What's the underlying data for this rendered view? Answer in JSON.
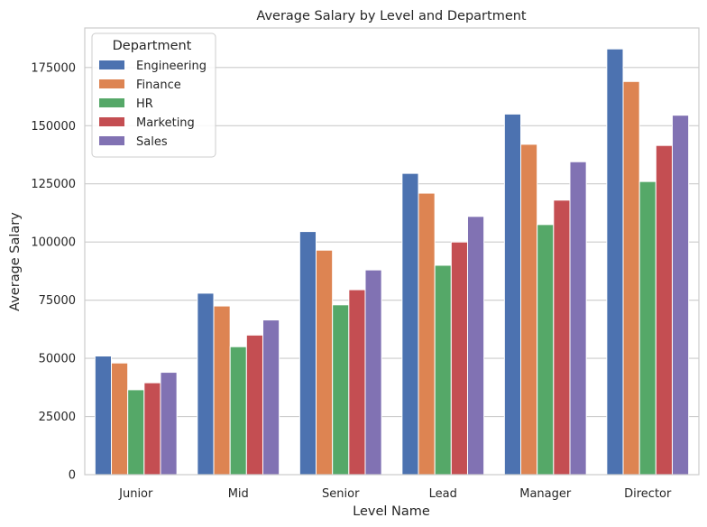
{
  "chart_data": {
    "type": "bar",
    "title": "Average Salary by Level and Department",
    "xlabel": "Level Name",
    "ylabel": "Average Salary",
    "categories": [
      "Junior",
      "Mid",
      "Senior",
      "Lead",
      "Manager",
      "Director"
    ],
    "ylim": [
      0,
      192000
    ],
    "yticks": [
      0,
      25000,
      50000,
      75000,
      100000,
      125000,
      150000,
      175000
    ],
    "ytick_labels": [
      "0",
      "25000",
      "50000",
      "75000",
      "100000",
      "125000",
      "150000",
      "175000"
    ],
    "grid": "y",
    "legend": {
      "title": "Department",
      "placement": "top-left"
    },
    "series": [
      {
        "name": "Engineering",
        "color": "#4c72b0",
        "values": [
          51000,
          78000,
          104500,
          129500,
          155000,
          183000
        ]
      },
      {
        "name": "Finance",
        "color": "#dd8452",
        "values": [
          48000,
          72500,
          96500,
          121000,
          142000,
          169000
        ]
      },
      {
        "name": "HR",
        "color": "#55a868",
        "values": [
          36500,
          55000,
          73000,
          90000,
          107500,
          126000
        ]
      },
      {
        "name": "Marketing",
        "color": "#c44e52",
        "values": [
          39500,
          60000,
          79500,
          100000,
          118000,
          141500
        ]
      },
      {
        "name": "Sales",
        "color": "#8172b3",
        "values": [
          44000,
          66500,
          88000,
          111000,
          134500,
          154500
        ]
      }
    ]
  }
}
